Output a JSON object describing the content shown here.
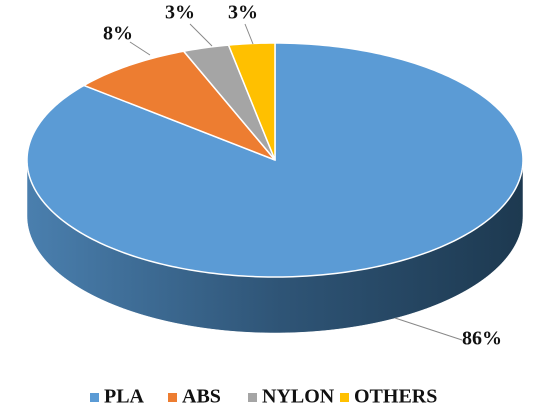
{
  "chart_data": {
    "type": "pie",
    "categories": [
      "PLA",
      "ABS",
      "NYLON",
      "OTHERS"
    ],
    "values": [
      86,
      8,
      3,
      3
    ],
    "value_labels": [
      "86%",
      "8%",
      "3%",
      "3%"
    ],
    "colors": [
      "#5b9bd5",
      "#ed7d31",
      "#a5a5a5",
      "#ffc000"
    ],
    "legend": "bottom"
  }
}
